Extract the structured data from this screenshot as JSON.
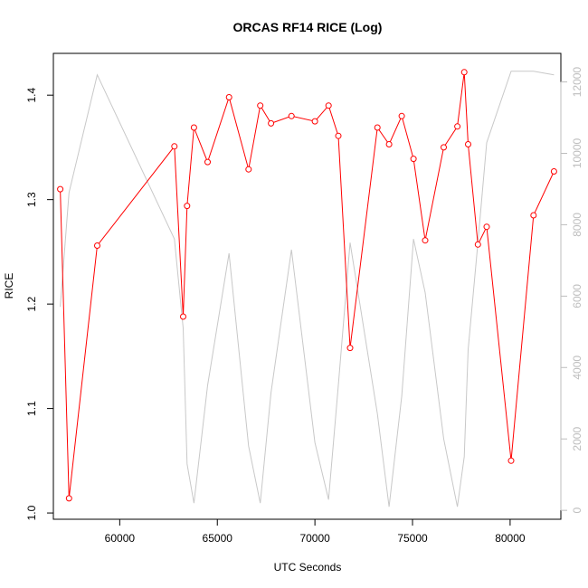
{
  "chart_data": {
    "type": "line",
    "title": "ORCAS RF14 RICE (Log)",
    "xlabel": "UTC Seconds",
    "ylabel": "RICE",
    "xlim": [
      56600,
      82600
    ],
    "ylim": [
      0.994,
      1.44
    ],
    "y2lim": [
      -250,
      12800
    ],
    "x_ticks": [
      60000,
      65000,
      70000,
      75000,
      80000
    ],
    "x_tick_labels": [
      "60000",
      "65000",
      "70000",
      "75000",
      "80000"
    ],
    "y_ticks": [
      1.0,
      1.1,
      1.2,
      1.3,
      1.4
    ],
    "y_tick_labels": [
      "1.0",
      "1.1",
      "1.2",
      "1.3",
      "1.4"
    ],
    "y2_ticks": [
      0,
      2000,
      4000,
      6000,
      8000,
      10000,
      12000
    ],
    "y2_tick_labels": [
      "0",
      "2000",
      "4000",
      "6000",
      "8000",
      "10000",
      "12000"
    ],
    "series": [
      {
        "axis": "left",
        "color": "#ff0000",
        "marker": "open-circle",
        "x": [
          56950,
          57400,
          58850,
          62800,
          63250,
          63450,
          63800,
          64500,
          65600,
          66600,
          67200,
          67750,
          68800,
          70000,
          70700,
          71200,
          71800,
          73200,
          73800,
          74450,
          75050,
          75650,
          76600,
          77300,
          77650,
          77850,
          78350,
          78800,
          80050,
          81200,
          82250
        ],
        "y": [
          1.31,
          1.014,
          1.256,
          1.351,
          1.188,
          1.294,
          1.369,
          1.336,
          1.398,
          1.329,
          1.39,
          1.373,
          1.38,
          1.375,
          1.39,
          1.361,
          1.158,
          1.369,
          1.353,
          1.38,
          1.339,
          1.261,
          1.35,
          1.37,
          1.422,
          1.353,
          1.257,
          1.274,
          1.05,
          1.285,
          1.327
        ]
      },
      {
        "axis": "right",
        "color": "#c8c8c8",
        "marker": "none",
        "x": [
          56950,
          57400,
          58850,
          62800,
          63250,
          63450,
          63800,
          64500,
          65600,
          66600,
          67200,
          67750,
          68800,
          70000,
          70700,
          71200,
          71800,
          73200,
          73800,
          74450,
          75050,
          75650,
          76600,
          77300,
          77650,
          77850,
          78350,
          78800,
          80050,
          81200,
          82250
        ],
        "y": [
          5700,
          8900,
          12200,
          7600,
          5100,
          1300,
          200,
          3500,
          7200,
          1800,
          200,
          3300,
          7300,
          1900,
          300,
          3500,
          7500,
          2700,
          100,
          3200,
          7600,
          6100,
          2000,
          100,
          1500,
          4500,
          7500,
          10300,
          12300,
          12300,
          12200
        ]
      }
    ]
  }
}
